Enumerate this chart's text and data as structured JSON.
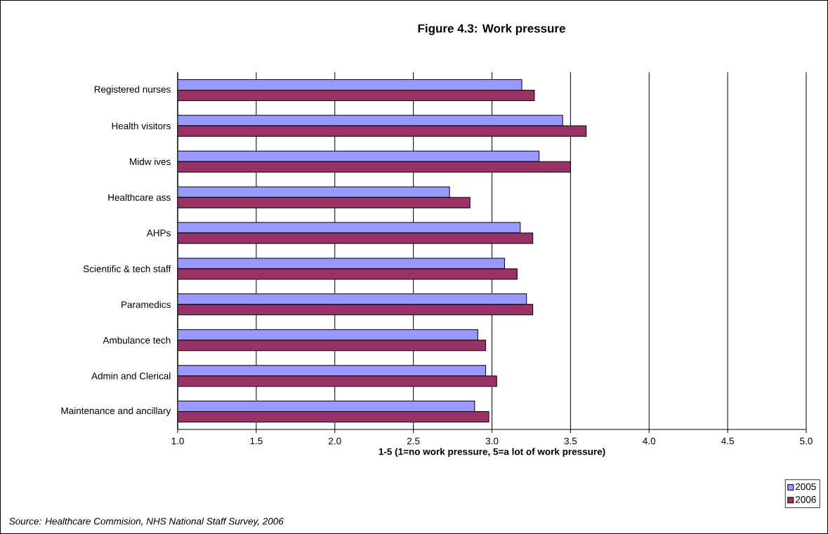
{
  "chart_data": {
    "type": "bar",
    "orientation": "horizontal",
    "title": "Figure 4.3: Work pressure",
    "xlabel": "1-5 (1=no work pressure, 5=a lot of work pressure)",
    "categories": [
      "Registered nurses",
      "Health visitors",
      "Midw ives",
      "Healthcare ass",
      "AHPs",
      "Scientific & tech staff",
      "Paramedics",
      "Ambulance tech",
      "Admin and Clerical",
      "Maintenance and ancillary"
    ],
    "series": [
      {
        "name": "2005",
        "color": "#9999ff",
        "values": [
          3.19,
          3.45,
          3.3,
          2.73,
          3.18,
          3.08,
          3.22,
          2.91,
          2.96,
          2.89
        ]
      },
      {
        "name": "2006",
        "color": "#993366",
        "values": [
          3.27,
          3.6,
          3.5,
          2.86,
          3.26,
          3.16,
          3.26,
          2.96,
          3.03,
          2.98
        ]
      }
    ],
    "xlim": [
      1,
      5
    ],
    "xticks": [
      {
        "value": 1,
        "label": "1.0"
      },
      {
        "value": 1.5,
        "label": "1.5"
      },
      {
        "value": 2,
        "label": "2.0"
      },
      {
        "value": 2.5,
        "label": "2.5"
      },
      {
        "value": 3,
        "label": "3.0"
      },
      {
        "value": 3.5,
        "label": "3.5"
      },
      {
        "value": 4,
        "label": "4.0"
      },
      {
        "value": 4.5,
        "label": "4.5"
      },
      {
        "value": 5,
        "label": "5.0"
      }
    ],
    "grid": "x",
    "legend": "bottom right",
    "annotations": [
      "*Source: Healthcare Commision, NHS National Staff Survey, 2006*"
    ]
  }
}
